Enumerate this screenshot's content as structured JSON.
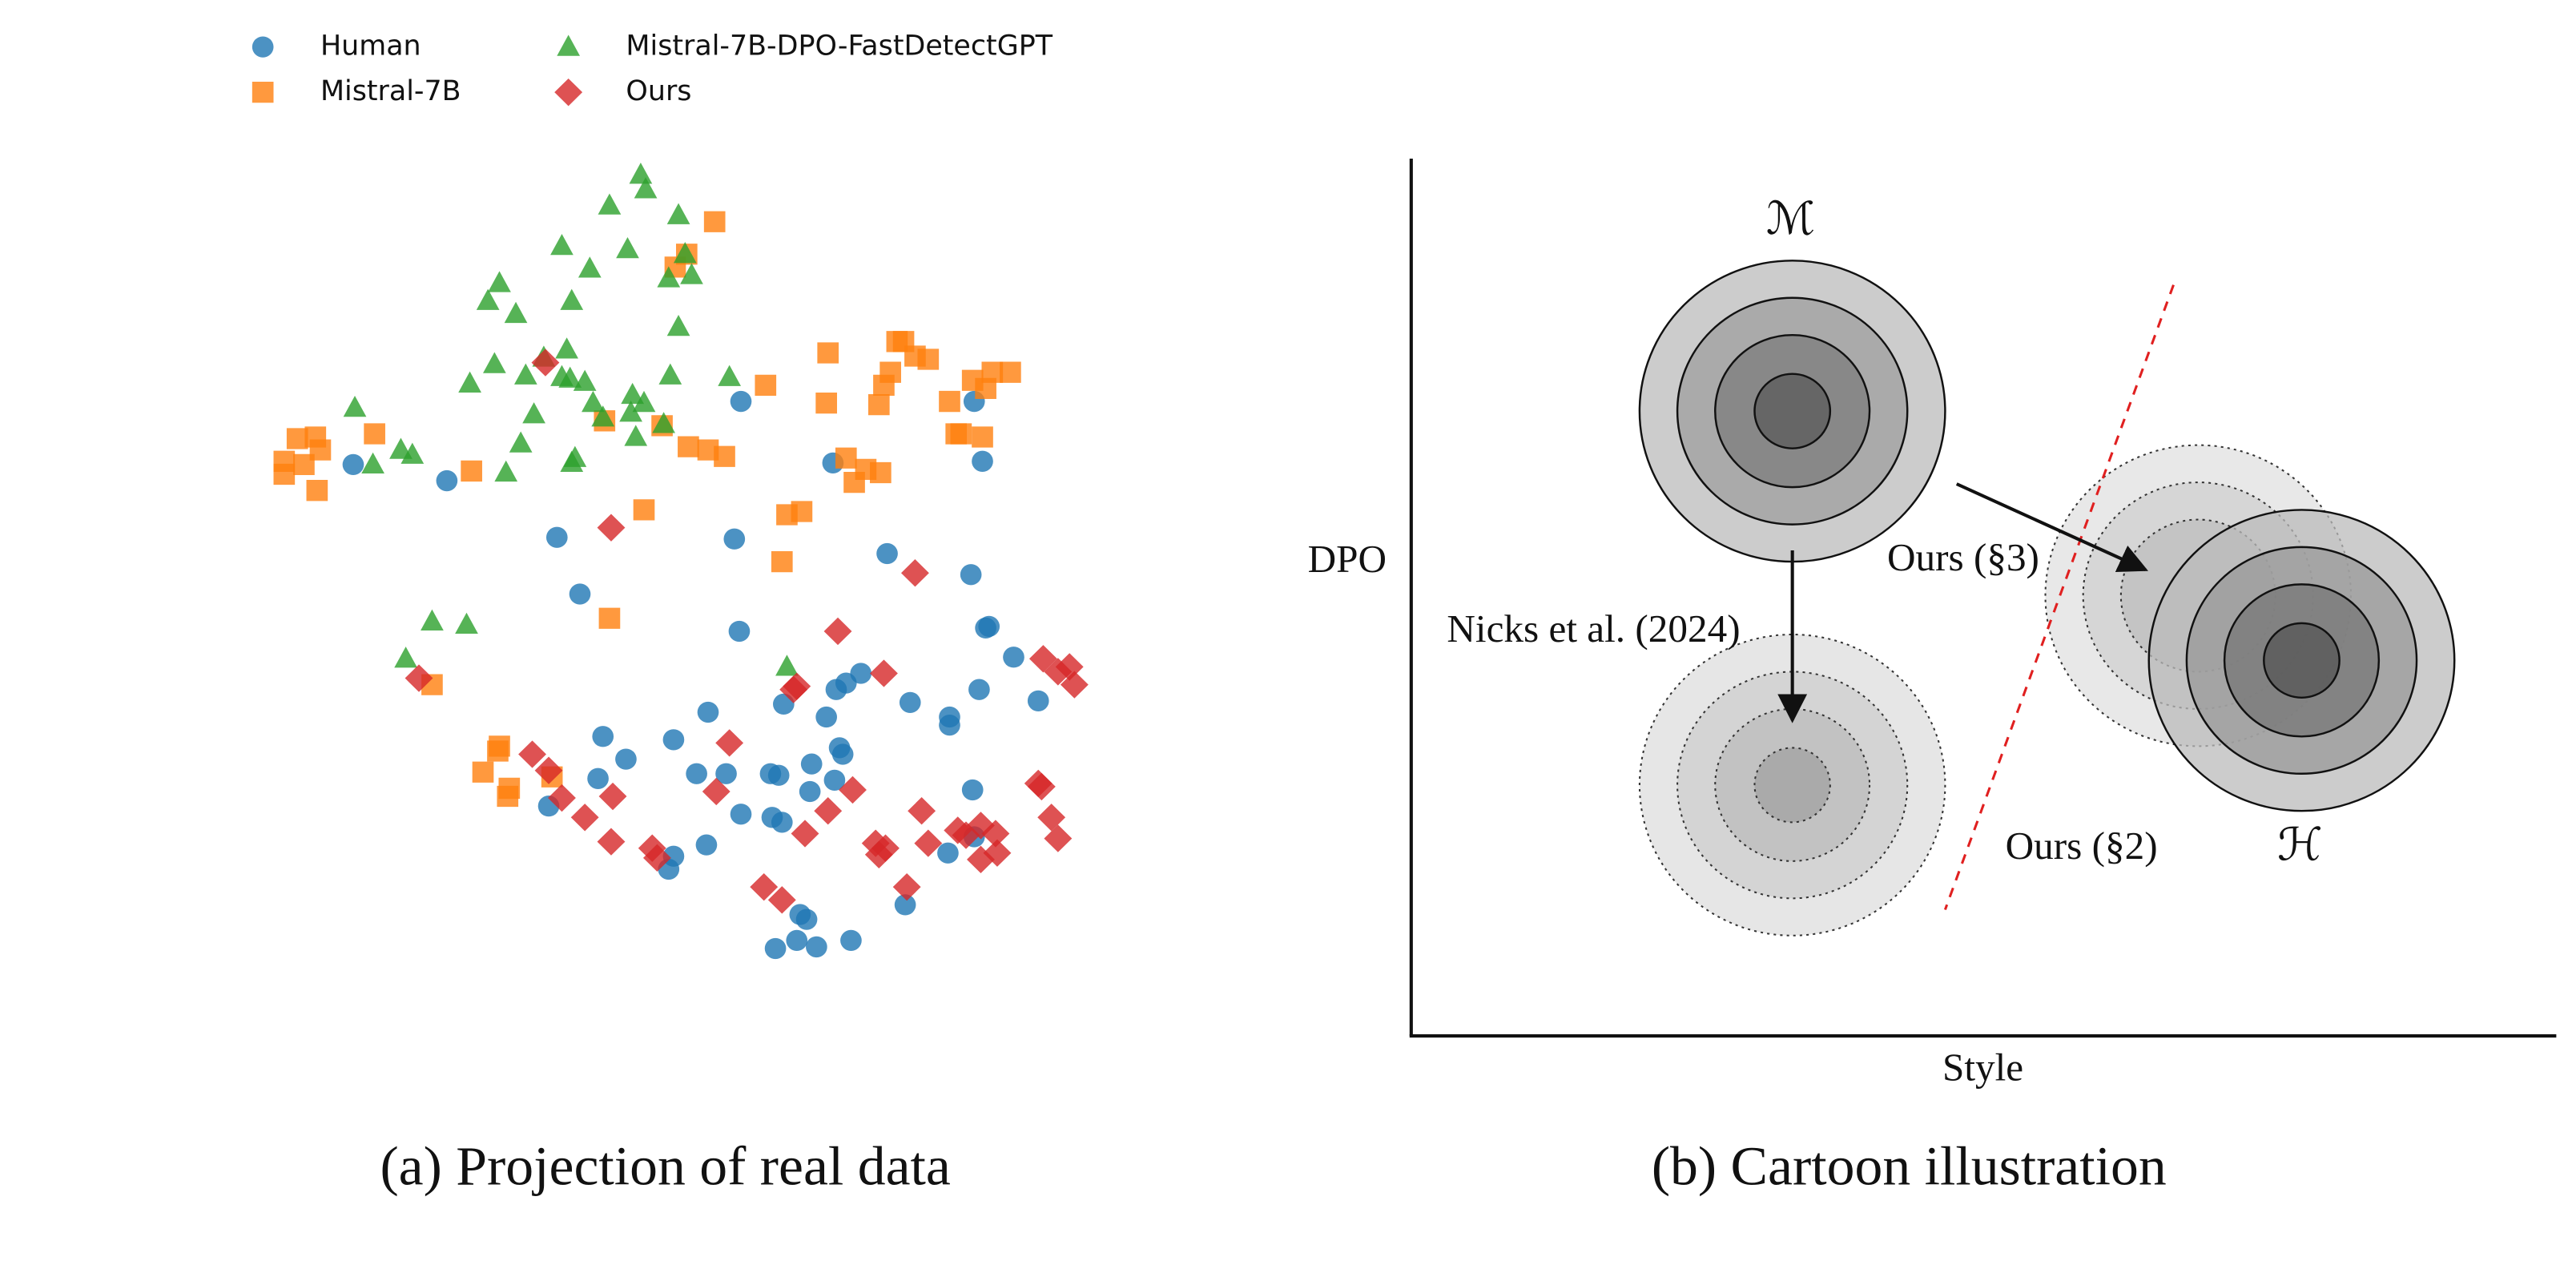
{
  "chart_data": [
    {
      "type": "scatter",
      "caption": "(a) Projection of real data",
      "legend": "upper left",
      "xlim": [
        150,
        680
      ],
      "ylim": [
        100,
        605
      ],
      "series": [
        {
          "name": "Human",
          "marker": "circle",
          "color": "#1f77b4",
          "x": [
            215,
            272,
            451,
            593,
            507,
            598,
            339,
            447,
            353,
            540,
            591,
            450,
            600,
            602,
            617,
            632,
            596,
            578,
            578,
            554,
            524,
            515,
            509,
            503,
            477,
            431,
            367,
            381,
            364,
            410,
            424,
            442,
            469,
            474,
            494,
            511,
            513,
            508,
            493,
            476,
            470,
            451,
            430,
            410,
            407,
            334,
            577,
            592,
            593,
            551,
            487,
            491,
            472,
            485,
            497,
            518
          ],
          "y": [
            413,
            403,
            452,
            452,
            414,
            415,
            368,
            367,
            333,
            358,
            345,
            310,
            312,
            313,
            294,
            267,
            274,
            257,
            252,
            266,
            284,
            278,
            274,
            257,
            265,
            260,
            245,
            231,
            219,
            243,
            222,
            222,
            222,
            221,
            228,
            238,
            234,
            218,
            211,
            192,
            195,
            197,
            178,
            171,
            163,
            202,
            173,
            212,
            183,
            141,
            135,
            132,
            114,
            119,
            115,
            119
          ]
        },
        {
          "name": "Mistral-7B",
          "marker": "square",
          "color": "#ff7f0e",
          "x": [
            173,
            173,
            185,
            181,
            192,
            195,
            193,
            228,
            287,
            419,
            431,
            441,
            403,
            368,
            392,
            479,
            488,
            476,
            371,
            435,
            411,
            418,
            466,
            504,
            503,
            535,
            538,
            542,
            546,
            550,
            557,
            565,
            578,
            592,
            600,
            604,
            615,
            582,
            598,
            585,
            515,
            520,
            527,
            536,
            263,
            304,
            303,
            294,
            310,
            309,
            336
          ],
          "y": [
            415,
            407,
            413,
            429,
            430,
            422,
            397,
            432,
            409,
            424,
            422,
            418,
            437,
            440,
            385,
            382,
            384,
            353,
            318,
            563,
            535,
            543,
            462,
            482,
            451,
            450,
            462,
            470,
            489,
            489,
            480,
            478,
            452,
            465,
            460,
            470,
            470,
            432,
            430,
            432,
            417,
            402,
            410,
            408,
            277,
            239,
            236,
            223,
            213,
            208,
            220
          ]
        },
        {
          "name": "Mistral-7B-DPO-FastDetectGPT",
          "marker": "triangle",
          "color": "#2ca02c",
          "x": [
            390,
            393,
            371,
            413,
            382,
            342,
            417,
            407,
            421,
            359,
            348,
            304,
            297,
            314,
            413,
            301,
            286,
            320,
            331,
            345,
            342,
            347,
            356,
            361,
            385,
            392,
            384,
            404,
            408,
            444,
            216,
            244,
            251,
            227,
            317,
            325,
            308,
            350,
            348,
            367,
            387,
            263,
            284,
            247,
            479
          ],
          "y": [
            592,
            583,
            573,
            567,
            546,
            548,
            543,
            528,
            530,
            534,
            514,
            525,
            514,
            506,
            498,
            475,
            463,
            468,
            479,
            484,
            467,
            466,
            464,
            451,
            456,
            451,
            445,
            438,
            468,
            467,
            448,
            422,
            419,
            413,
            426,
            444,
            408,
            417,
            414,
            442,
            430,
            316,
            314,
            293,
            288
          ]
        },
        {
          "name": "Ours",
          "marker": "diamond",
          "color": "#d62728",
          "x": [
            332,
            372,
            557,
            510,
            538,
            485,
            483,
            255,
            635,
            644,
            651,
            654,
            444,
            324,
            334,
            342,
            356,
            373,
            372,
            397,
            400,
            436,
            490,
            504,
            519,
            533,
            535,
            539,
            561,
            565,
            583,
            588,
            597,
            606,
            597,
            607,
            632,
            634,
            640,
            644,
            465,
            476,
            552
          ],
          "y": [
            476,
            374,
            346,
            310,
            284,
            276,
            274,
            281,
            293,
            285,
            288,
            277,
            241,
            234,
            224,
            207,
            195,
            208,
            180,
            176,
            170,
            211,
            185,
            199,
            212,
            179,
            172,
            176,
            199,
            179,
            187,
            184,
            190,
            185,
            169,
            173,
            216,
            214,
            195,
            182,
            152,
            144,
            152
          ]
        }
      ]
    },
    {
      "type": "illustration",
      "caption": "(b) Cartoon illustration",
      "xlabel": "Style",
      "ylabel": "DPO",
      "annotations": [
        "ℳ",
        "ℋ",
        "Ours (§3)",
        "Nicks et al. (2024)",
        "Ours (§2)"
      ]
    }
  ]
}
